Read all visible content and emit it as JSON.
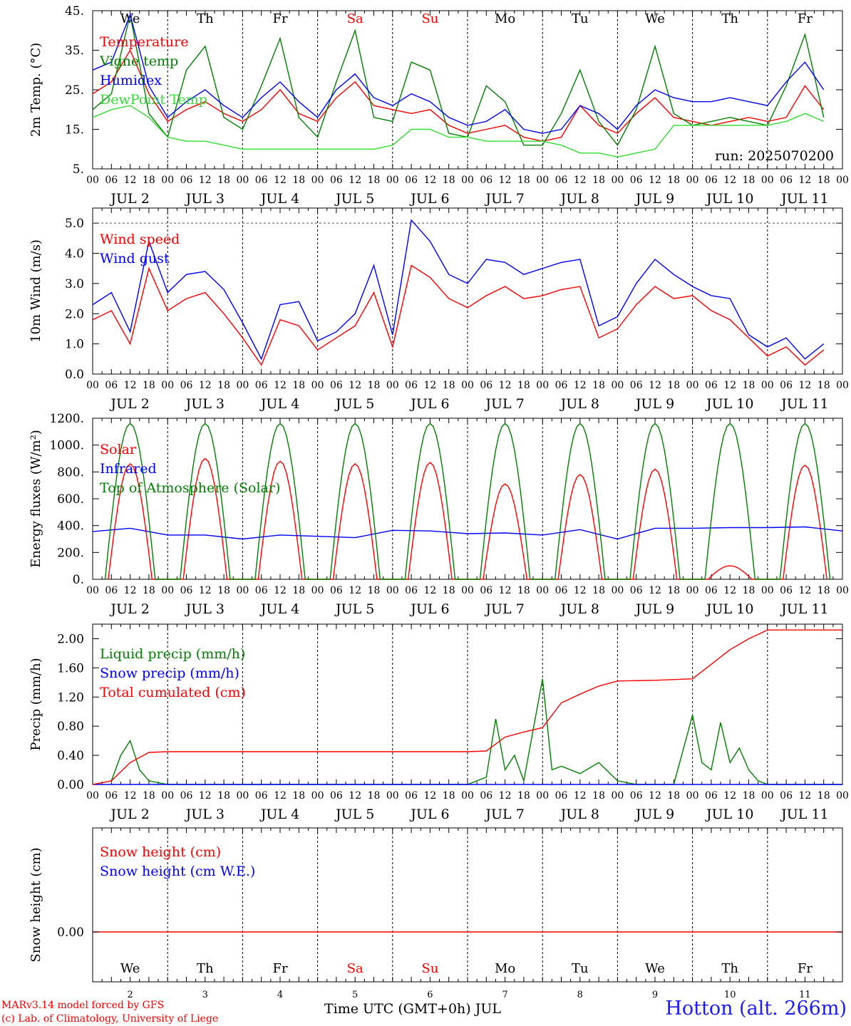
{
  "footer": {
    "credit_line1": "MARv3.14 model forced by GFS",
    "credit_line2": "(c) Lab. of Climatology, University of Liege",
    "station": "Hotton (alt. 266m)",
    "x_title": "Time UTC (GMT+0h) JUL"
  },
  "colors": {
    "red": "#ff0000",
    "blue": "#0000ff",
    "green": "#008000",
    "lightgreen": "#33dd33",
    "purple": "#8b00a0"
  },
  "days": {
    "names": [
      "We",
      "Th",
      "Fr",
      "Sa",
      "Su",
      "Mo",
      "Tu",
      "We",
      "Th",
      "Fr"
    ],
    "weekend_index": [
      3,
      4
    ],
    "dates": [
      "JUL  2",
      "JUL  3",
      "JUL  4",
      "JUL  5",
      "JUL  6",
      "JUL  7",
      "JUL  8",
      "JUL  9",
      "JUL 10",
      "JUL 11"
    ],
    "numbers": [
      "2",
      "3",
      "4",
      "5",
      "6",
      "7",
      "8",
      "9",
      "10",
      "11"
    ],
    "hour_labels": [
      "00",
      "06",
      "12",
      "18"
    ],
    "end_label": "00"
  },
  "chart_data": [
    {
      "id": "temp",
      "type": "line",
      "ylabel": "2m Temp. (°C)",
      "ylim": [
        5,
        45
      ],
      "yticks": [
        5,
        15,
        25,
        35,
        45
      ],
      "ytick_labels": [
        "5.",
        "15.",
        "25.",
        "35.",
        "45."
      ],
      "annotation": "run: 2025070200",
      "x_unit": "hours since JUL 2 00 UTC",
      "series": [
        {
          "name": "Temperature",
          "color": "#ff0000",
          "x": [
            0,
            6,
            12,
            18,
            24,
            30,
            36,
            42,
            48,
            54,
            60,
            66,
            72,
            78,
            84,
            90,
            96,
            102,
            108,
            114,
            120,
            126,
            132,
            138,
            144,
            150,
            156,
            162,
            168,
            174,
            180,
            186,
            192,
            198,
            204,
            210,
            216,
            222,
            228,
            234
          ],
          "y": [
            24,
            27,
            35,
            24,
            17,
            20,
            22,
            19,
            17,
            20,
            25,
            19,
            17,
            23,
            27,
            21,
            20,
            19,
            20,
            16,
            14,
            15,
            16,
            13,
            12,
            13,
            21,
            16,
            14,
            19,
            23,
            18,
            17,
            16,
            17,
            18,
            17,
            18,
            26,
            20
          ]
        },
        {
          "name": "Vigne temp",
          "color": "#008000",
          "x": [
            0,
            6,
            12,
            18,
            24,
            30,
            36,
            42,
            48,
            54,
            60,
            66,
            72,
            78,
            84,
            90,
            96,
            102,
            108,
            114,
            120,
            126,
            132,
            138,
            144,
            150,
            156,
            162,
            168,
            174,
            180,
            186,
            192,
            198,
            204,
            210,
            216,
            222,
            228,
            234
          ],
          "y": [
            20,
            24,
            44,
            19,
            13,
            30,
            36,
            18,
            15,
            26,
            38,
            18,
            13,
            27,
            40,
            18,
            17,
            32,
            30,
            14,
            13,
            26,
            22,
            11,
            11,
            19,
            30,
            17,
            11,
            20,
            36,
            19,
            16,
            17,
            18,
            17,
            16,
            26,
            39,
            18
          ]
        },
        {
          "name": "Humidex",
          "color": "#0000ff",
          "x": [
            0,
            6,
            12,
            18,
            24,
            30,
            36,
            42,
            48,
            54,
            60,
            66,
            72,
            78,
            84,
            90,
            96,
            102,
            108,
            114,
            120,
            126,
            132,
            138,
            144,
            150,
            156,
            162,
            168,
            174,
            180,
            186,
            192,
            198,
            204,
            210,
            216,
            222,
            228,
            234
          ],
          "y": [
            30,
            32,
            44,
            26,
            18,
            22,
            25,
            21,
            18,
            23,
            27,
            22,
            18,
            25,
            29,
            23,
            21,
            24,
            22,
            18,
            16,
            17,
            20,
            15,
            14,
            15,
            21,
            19,
            15,
            21,
            25,
            23,
            22,
            22,
            23,
            22,
            21,
            27,
            32,
            25
          ]
        },
        {
          "name": "DewPoint Temp",
          "color": "#33dd33",
          "x": [
            0,
            6,
            12,
            18,
            24,
            30,
            36,
            42,
            48,
            54,
            60,
            66,
            72,
            78,
            84,
            90,
            96,
            102,
            108,
            114,
            120,
            126,
            132,
            138,
            144,
            150,
            156,
            162,
            168,
            174,
            180,
            186,
            192,
            198,
            204,
            210,
            216,
            222,
            228,
            234
          ],
          "y": [
            18,
            20,
            21,
            18,
            13,
            12,
            12,
            11,
            10,
            10,
            10,
            10,
            10,
            10,
            10,
            10,
            11,
            15,
            15,
            13,
            13,
            12,
            12,
            12,
            12,
            11,
            9,
            9,
            8,
            9,
            10,
            16,
            16,
            16,
            16,
            16,
            16,
            17,
            19,
            17
          ]
        }
      ]
    },
    {
      "id": "wind",
      "type": "line",
      "ylabel": "10m Wind (m/s)",
      "ylim": [
        0,
        5.5
      ],
      "yticks": [
        0,
        1,
        2,
        3,
        4,
        5
      ],
      "ytick_labels": [
        "0.0",
        "1.0",
        "2.0",
        "3.0",
        "4.0",
        "5.0"
      ],
      "dashed_level": 5.0,
      "x_unit": "hours since JUL 2 00 UTC",
      "series": [
        {
          "name": "Wind speed",
          "color": "#ff0000",
          "x": [
            0,
            6,
            12,
            18,
            24,
            30,
            36,
            42,
            48,
            54,
            60,
            66,
            72,
            78,
            84,
            90,
            96,
            102,
            108,
            114,
            120,
            126,
            132,
            138,
            144,
            150,
            156,
            162,
            168,
            174,
            180,
            186,
            192,
            198,
            204,
            210,
            216,
            222,
            228,
            234
          ],
          "y": [
            1.8,
            2.1,
            1.0,
            3.5,
            2.1,
            2.5,
            2.7,
            2.0,
            1.2,
            0.3,
            1.8,
            1.6,
            0.8,
            1.2,
            1.6,
            2.7,
            0.9,
            3.6,
            3.2,
            2.5,
            2.2,
            2.6,
            2.9,
            2.5,
            2.6,
            2.8,
            2.9,
            1.2,
            1.5,
            2.3,
            2.9,
            2.5,
            2.6,
            2.1,
            1.8,
            1.2,
            0.6,
            0.9,
            0.3,
            0.8
          ]
        },
        {
          "name": "Wind gust",
          "color": "#0000ff",
          "x": [
            0,
            6,
            12,
            18,
            24,
            30,
            36,
            42,
            48,
            54,
            60,
            66,
            72,
            78,
            84,
            90,
            96,
            102,
            108,
            114,
            120,
            126,
            132,
            138,
            144,
            150,
            156,
            162,
            168,
            174,
            180,
            186,
            192,
            198,
            204,
            210,
            216,
            222,
            228,
            234
          ],
          "y": [
            2.3,
            2.7,
            1.4,
            4.4,
            2.7,
            3.3,
            3.4,
            2.8,
            1.7,
            0.5,
            2.3,
            2.4,
            1.1,
            1.4,
            2.0,
            3.6,
            1.3,
            5.1,
            4.4,
            3.3,
            3.0,
            3.8,
            3.7,
            3.3,
            3.5,
            3.7,
            3.8,
            1.6,
            1.9,
            3.0,
            3.8,
            3.3,
            2.9,
            2.6,
            2.5,
            1.3,
            0.9,
            1.2,
            0.5,
            1.0
          ]
        }
      ]
    },
    {
      "id": "energy",
      "type": "line",
      "ylabel": "Energy fluxes (W/m²)",
      "ylim": [
        0,
        1200
      ],
      "yticks": [
        0,
        200,
        400,
        600,
        800,
        1000,
        1200
      ],
      "ytick_labels": [
        "0.",
        "200.",
        "400.",
        "600.",
        "800.",
        "1000.",
        "1200."
      ],
      "x_unit": "hours since JUL 2 00 UTC",
      "toa_peak": 1160,
      "solar_peaks": [
        860,
        900,
        880,
        860,
        870,
        710,
        780,
        820,
        100,
        850
      ],
      "series": [
        {
          "name": "Solar",
          "color": "#ff0000"
        },
        {
          "name": "Infrared",
          "color": "#0000ff",
          "x": [
            0,
            12,
            24,
            36,
            48,
            60,
            72,
            84,
            96,
            108,
            120,
            132,
            144,
            156,
            168,
            180,
            192,
            204,
            216,
            228,
            240
          ],
          "y": [
            355,
            380,
            330,
            330,
            300,
            330,
            320,
            310,
            365,
            360,
            340,
            345,
            330,
            370,
            300,
            380,
            380,
            385,
            385,
            390,
            360
          ]
        },
        {
          "name": "Top of Atmosphere (Solar)",
          "color": "#008000"
        }
      ]
    },
    {
      "id": "precip",
      "type": "line",
      "ylabel": "Precip (mm/h)",
      "ylim": [
        0,
        2.2
      ],
      "yticks": [
        0,
        0.4,
        0.8,
        1.2,
        1.6,
        2.0
      ],
      "ytick_labels": [
        "0.00",
        "0.40",
        "0.80",
        "1.20",
        "1.60",
        "2.00"
      ],
      "x_unit": "hours since JUL 2 00 UTC",
      "series": [
        {
          "name": "Liquid precip (mm/h)",
          "color": "#008000",
          "x": [
            0,
            6,
            9,
            12,
            15,
            18,
            24,
            120,
            126,
            129,
            132,
            135,
            138,
            144,
            147,
            150,
            156,
            162,
            168,
            174,
            186,
            192,
            195,
            198,
            201,
            204,
            207,
            210,
            213,
            216,
            240
          ],
          "y": [
            0,
            0.05,
            0.4,
            0.6,
            0.2,
            0.05,
            0,
            0,
            0.1,
            0.9,
            0.2,
            0.4,
            0.05,
            1.45,
            0.2,
            0.25,
            0.15,
            0.3,
            0.05,
            0,
            0,
            0.95,
            0.3,
            0.2,
            0.85,
            0.3,
            0.5,
            0.2,
            0.05,
            0,
            0
          ]
        },
        {
          "name": "Snow precip (mm/h)",
          "color": "#0000ff",
          "x": [
            0,
            240
          ],
          "y": [
            0,
            0
          ]
        },
        {
          "name": "Total cumulated (cm)",
          "color": "#ff0000",
          "x": [
            0,
            6,
            12,
            18,
            24,
            120,
            126,
            132,
            138,
            144,
            150,
            156,
            162,
            168,
            180,
            192,
            198,
            204,
            210,
            216,
            240
          ],
          "y": [
            0,
            0.05,
            0.3,
            0.44,
            0.45,
            0.45,
            0.46,
            0.65,
            0.72,
            0.78,
            1.12,
            1.24,
            1.35,
            1.42,
            1.43,
            1.45,
            1.65,
            1.85,
            2.0,
            2.12,
            2.12
          ]
        }
      ]
    },
    {
      "id": "snow",
      "type": "line",
      "ylabel": "Snow height (cm)",
      "ytick_labels": [
        "0.00"
      ],
      "x_unit": "hours since JUL 2 00 UTC",
      "series": [
        {
          "name": "Snow height (cm)",
          "color": "#ff0000",
          "x": [
            0,
            240
          ],
          "y": [
            0,
            0
          ]
        },
        {
          "name": "Snow height (cm W.E.)",
          "color": "#0000ff",
          "x": [
            0,
            240
          ],
          "y": [
            0,
            0
          ]
        }
      ]
    }
  ]
}
